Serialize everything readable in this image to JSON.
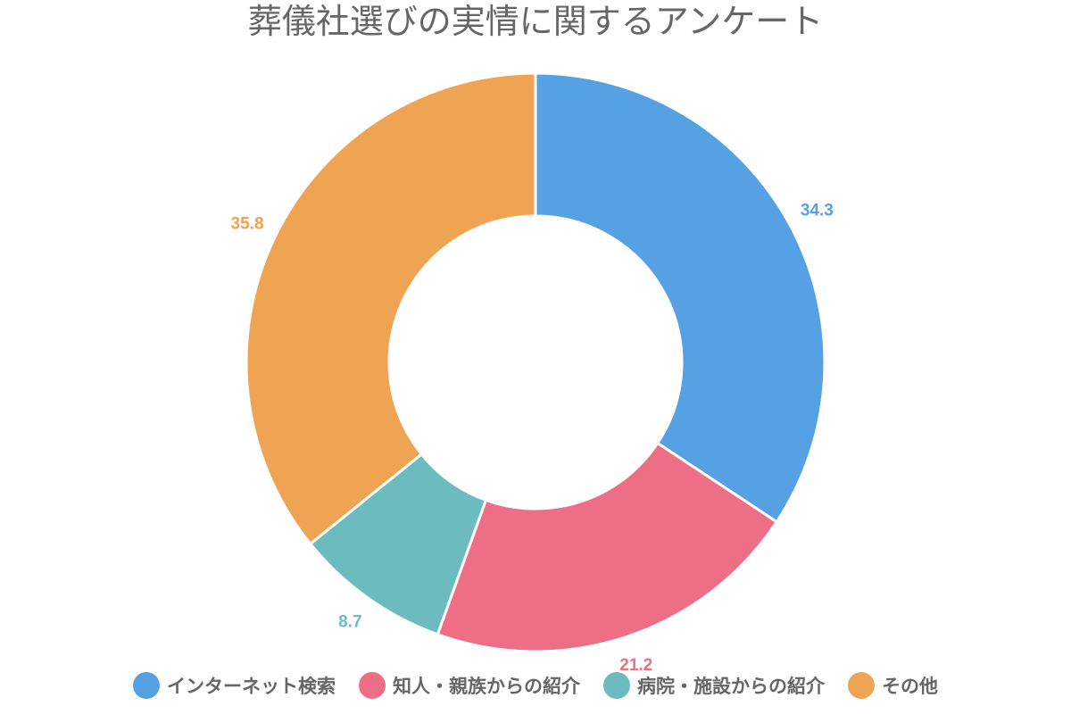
{
  "chart_data": {
    "type": "pie",
    "title": "葬儀社選びの実情に関するアンケート",
    "categories": [
      "インターネット検索",
      "知人・親族からの紹介",
      "病院・施設からの紹介",
      "その他"
    ],
    "values": [
      34.3,
      21.2,
      8.7,
      35.8
    ],
    "colors": [
      "#56a0e4",
      "#ed6e86",
      "#6cbcbf",
      "#efa454"
    ],
    "data_labels": [
      "34.3",
      "21.2",
      "8.7",
      "35.8"
    ],
    "legend_position": "bottom",
    "start_angle": "top, clockwise"
  }
}
